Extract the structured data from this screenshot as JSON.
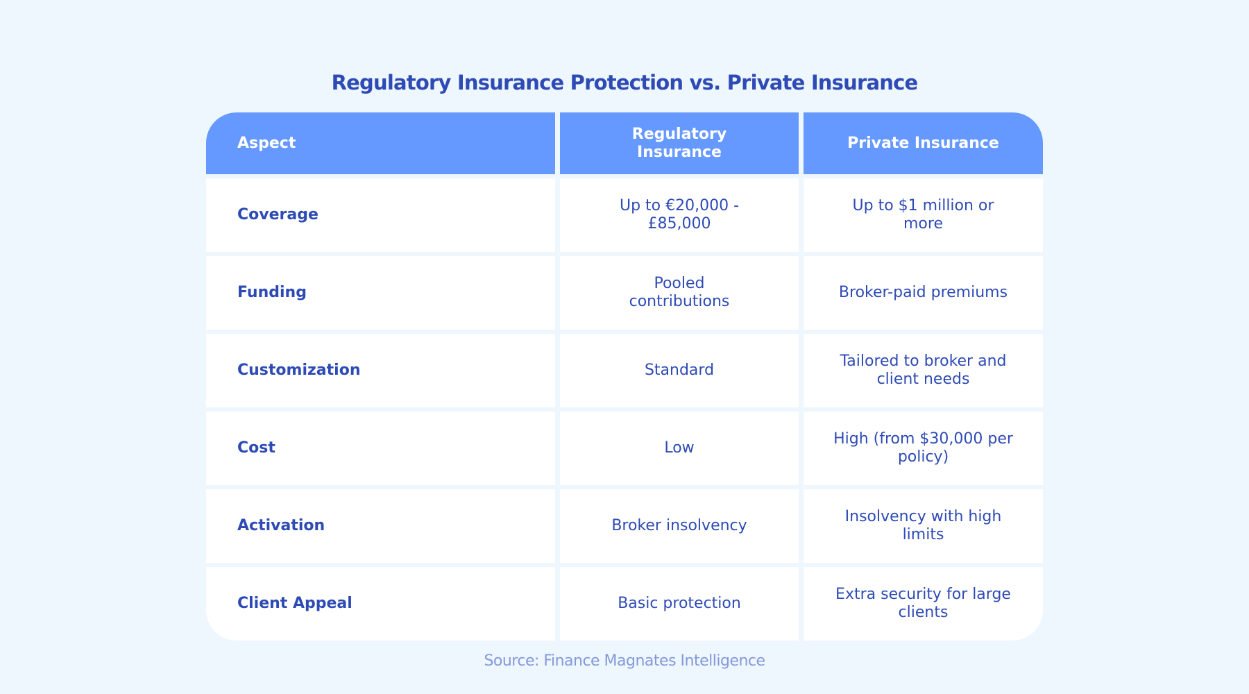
{
  "title": "Regulatory Insurance Protection vs. Private Insurance",
  "colors": {
    "header": "#6699FF",
    "text": "#2E4BB5",
    "background": "#EEF6FE"
  },
  "table": {
    "headers": [
      "Aspect",
      "Regulatory Insurance",
      "Private Insurance"
    ],
    "rows": [
      [
        "Coverage",
        "Up to €20,000 - £85,000",
        "Up to $1 million or more"
      ],
      [
        "Funding",
        "Pooled contributions",
        "Broker-paid premiums"
      ],
      [
        "Customization",
        "Standard",
        "Tailored to broker and client needs"
      ],
      [
        "Cost",
        "Low",
        "High (from $30,000 per policy)"
      ],
      [
        "Activation",
        "Broker insolvency",
        "Insolvency with high limits"
      ],
      [
        "Client Appeal",
        "Basic protection",
        "Extra security for large clients"
      ]
    ]
  },
  "source": "Source: Finance Magnates Intelligence"
}
